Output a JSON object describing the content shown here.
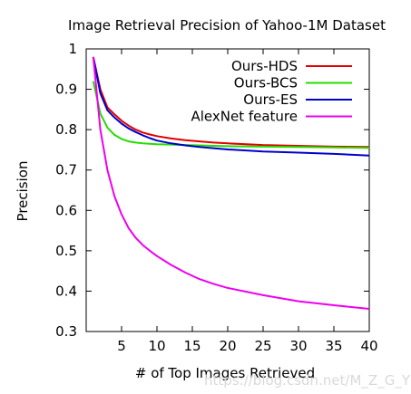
{
  "chart_data": {
    "type": "line",
    "title": "Image Retrieval Precision of Yahoo-1M Dataset",
    "xlabel": "# of Top Images Retrieved",
    "ylabel": "Precision",
    "xlim": [
      0,
      40
    ],
    "ylim": [
      0.3,
      1.0
    ],
    "x_ticks": [
      5,
      10,
      15,
      20,
      25,
      30,
      35,
      40
    ],
    "y_ticks": [
      0.3,
      0.4,
      0.5,
      0.6,
      0.7,
      0.8,
      0.9,
      1.0
    ],
    "x_tick_labels": [
      "5",
      "10",
      "15",
      "20",
      "25",
      "30",
      "35",
      "40"
    ],
    "y_tick_labels": [
      "0.3",
      "0.4",
      "0.5",
      "0.6",
      "0.7",
      "0.8",
      "0.9",
      "1"
    ],
    "grid": false,
    "legend_position": "top-right",
    "x": [
      1,
      2,
      3,
      4,
      5,
      6,
      7,
      8,
      9,
      10,
      12,
      14,
      16,
      18,
      20,
      25,
      30,
      35,
      40
    ],
    "series": [
      {
        "name": "Ours-HDS",
        "color": "#e00000",
        "values": [
          0.98,
          0.9,
          0.855,
          0.838,
          0.822,
          0.81,
          0.8,
          0.793,
          0.788,
          0.784,
          0.778,
          0.774,
          0.771,
          0.768,
          0.766,
          0.762,
          0.76,
          0.758,
          0.757
        ]
      },
      {
        "name": "Ours-BCS",
        "color": "#22dd00",
        "values": [
          0.92,
          0.84,
          0.805,
          0.787,
          0.777,
          0.771,
          0.768,
          0.766,
          0.765,
          0.764,
          0.763,
          0.762,
          0.761,
          0.76,
          0.759,
          0.758,
          0.757,
          0.756,
          0.755
        ]
      },
      {
        "name": "Ours-ES",
        "color": "#0000cc",
        "values": [
          0.98,
          0.89,
          0.848,
          0.83,
          0.815,
          0.803,
          0.794,
          0.786,
          0.779,
          0.773,
          0.766,
          0.761,
          0.757,
          0.754,
          0.751,
          0.746,
          0.743,
          0.74,
          0.736
        ]
      },
      {
        "name": "AlexNet feature",
        "color": "#ee00ee",
        "values": [
          0.98,
          0.8,
          0.7,
          0.635,
          0.59,
          0.556,
          0.532,
          0.514,
          0.5,
          0.487,
          0.465,
          0.446,
          0.43,
          0.418,
          0.408,
          0.39,
          0.375,
          0.365,
          0.356
        ]
      }
    ]
  },
  "watermark": "https://blog.csdn.net/M_Z_G_Y"
}
